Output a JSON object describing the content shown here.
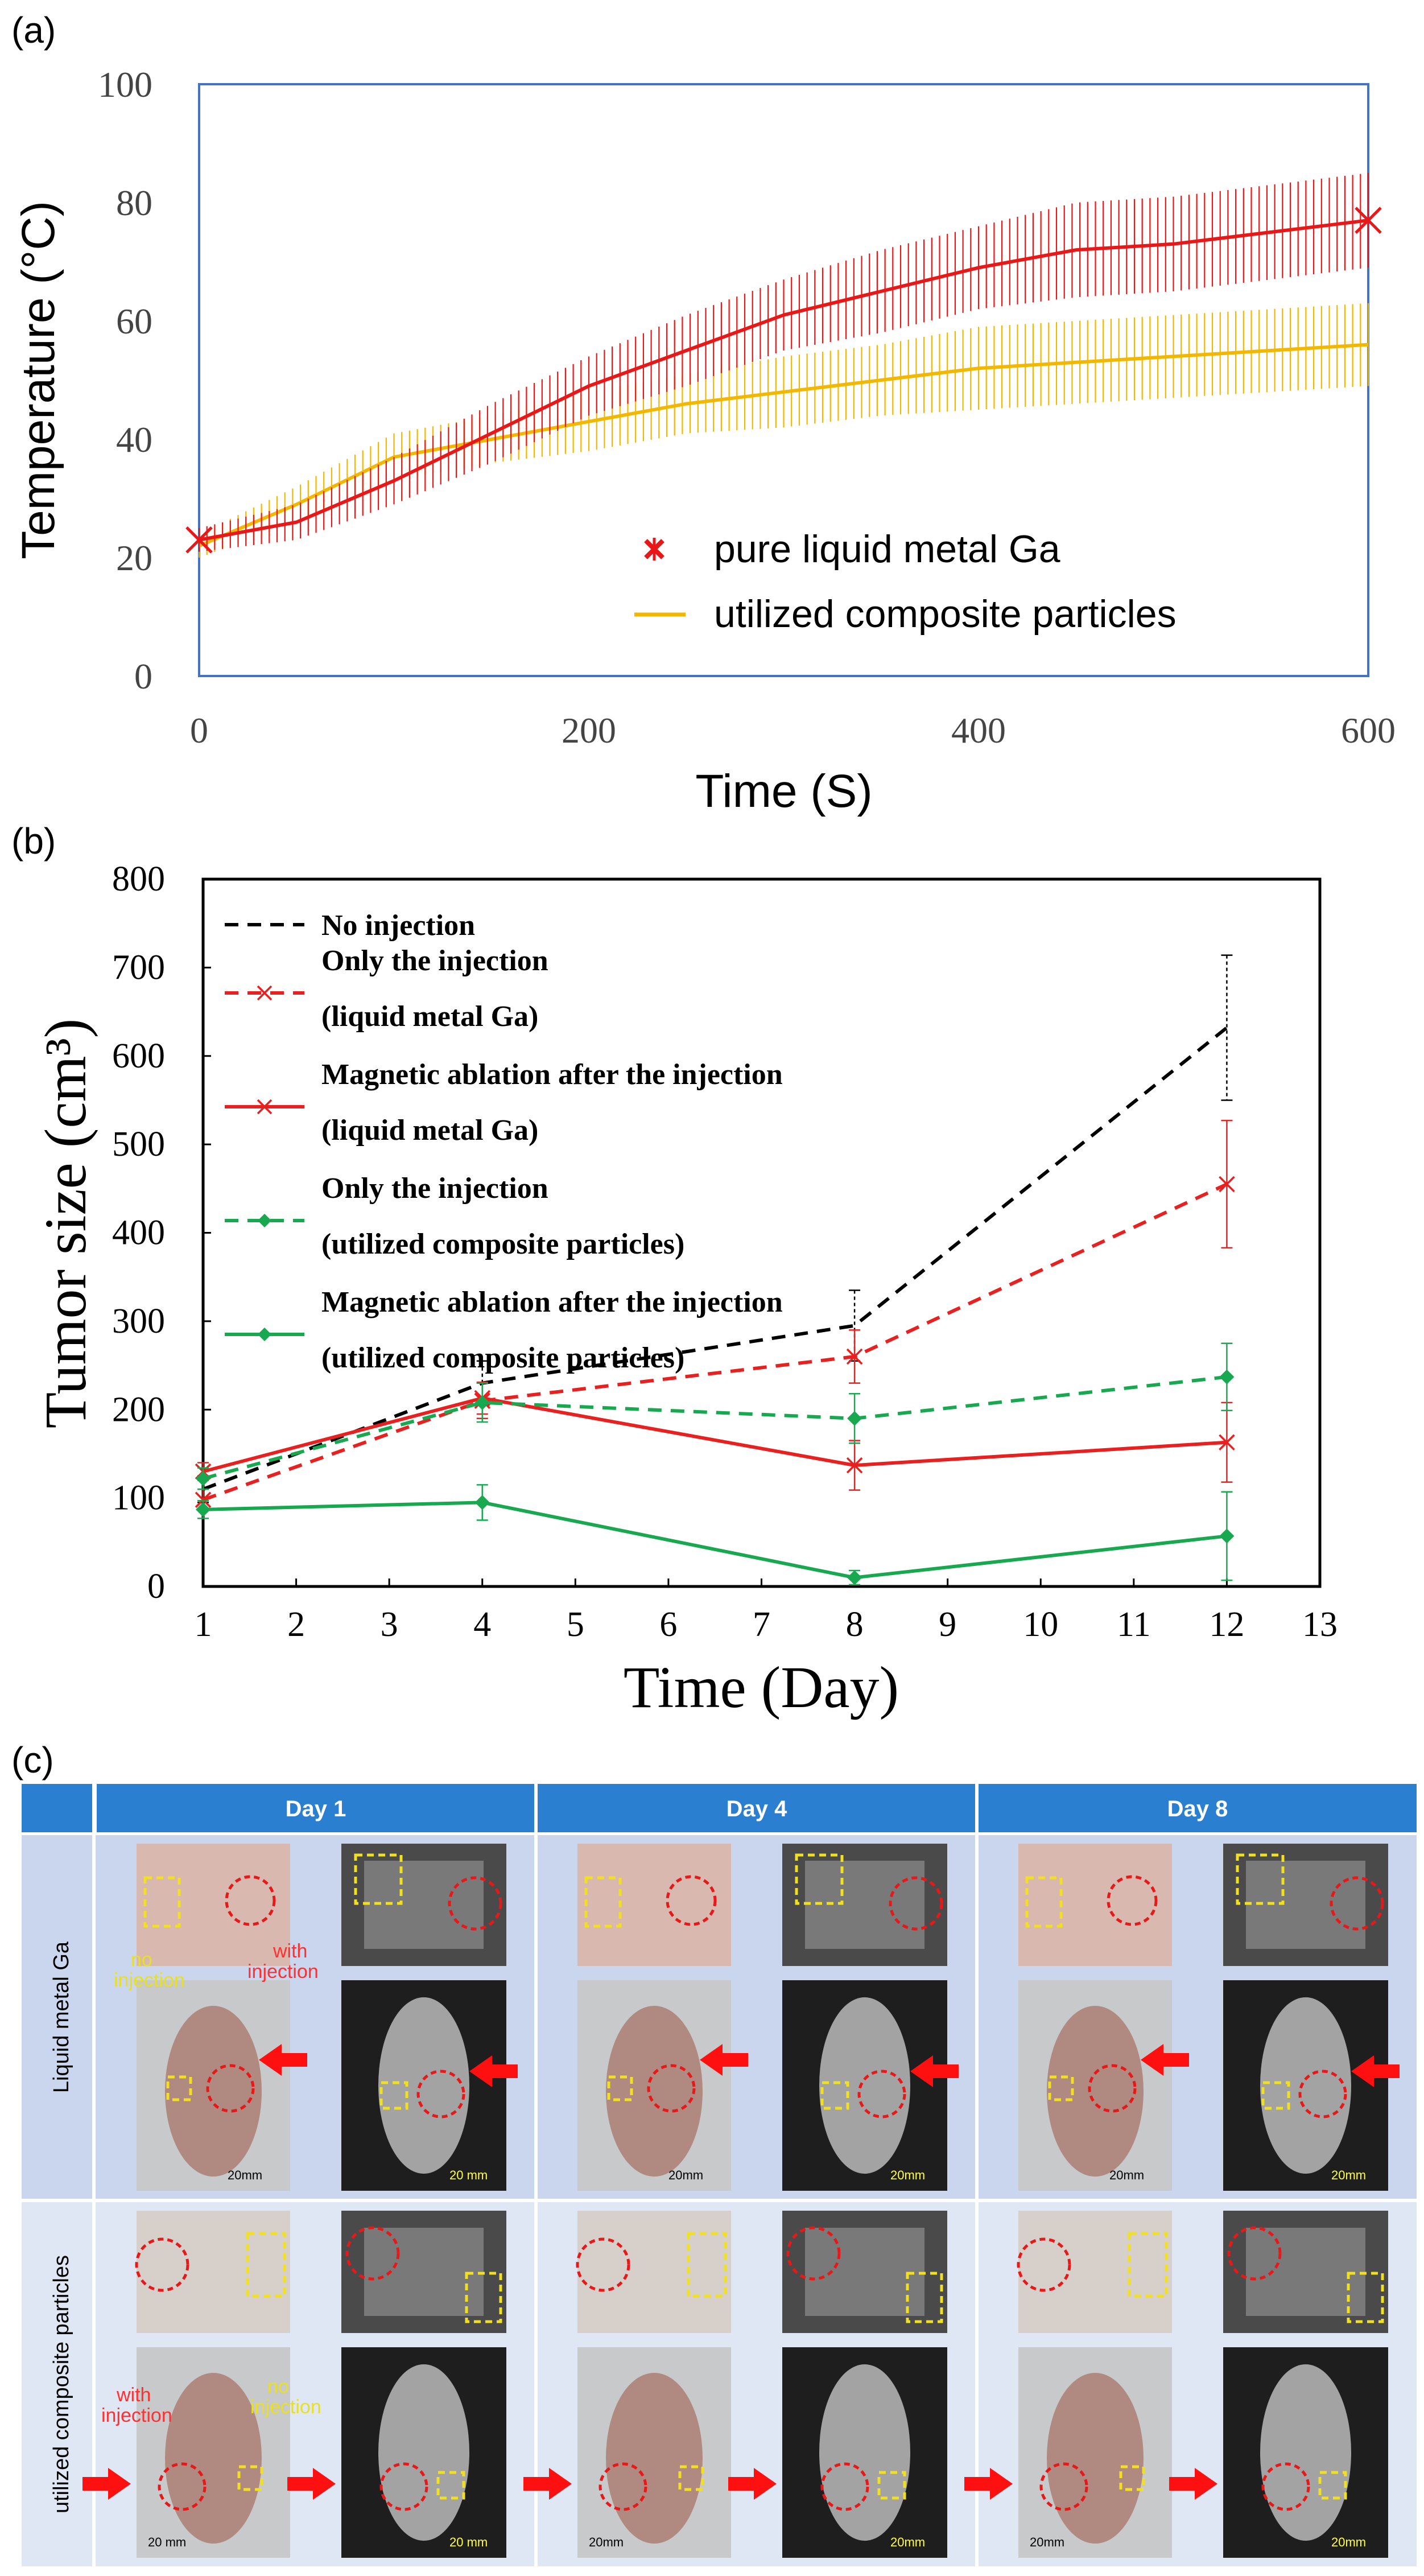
{
  "panels": {
    "a_label": "(a)",
    "b_label": "(b)",
    "c_label": "(c)"
  },
  "chart_data": [
    {
      "type": "line",
      "title": "",
      "xlabel": "Time (S)",
      "ylabel": "Temperature (°C)",
      "xlim": [
        0,
        600
      ],
      "ylim": [
        0,
        100
      ],
      "xticks": [
        0,
        200,
        400,
        600
      ],
      "yticks": [
        0,
        20,
        40,
        60,
        80,
        100
      ],
      "legend_position": "bottom-right",
      "series": [
        {
          "name": "pure liquid metal Ga",
          "color": "#e81818",
          "marker": "x",
          "x": [
            0,
            50,
            100,
            150,
            200,
            250,
            300,
            350,
            400,
            450,
            500,
            550,
            600
          ],
          "y": [
            23,
            26,
            33,
            41,
            49,
            55,
            61,
            65,
            69,
            72,
            73,
            75,
            77
          ],
          "err": [
            2,
            3,
            4,
            5,
            5,
            6,
            6,
            7,
            7,
            8,
            8,
            8,
            8
          ]
        },
        {
          "name": "utilized composite particles",
          "color": "#f2b800",
          "marker": "none",
          "x": [
            0,
            50,
            100,
            150,
            200,
            250,
            300,
            350,
            400,
            450,
            500,
            550,
            600
          ],
          "y": [
            22,
            29,
            37,
            40,
            43,
            46,
            48,
            50,
            52,
            53,
            54,
            55,
            56
          ],
          "err": [
            2,
            3,
            4,
            4,
            5,
            5,
            6,
            6,
            7,
            7,
            7,
            7,
            7
          ]
        }
      ]
    },
    {
      "type": "line",
      "title": "",
      "xlabel": "Time (Day)",
      "ylabel": "Tumor size (cm³)",
      "xlim": [
        1,
        13
      ],
      "ylim": [
        0,
        800
      ],
      "xticks": [
        1,
        2,
        3,
        4,
        5,
        6,
        7,
        8,
        9,
        10,
        11,
        12,
        13
      ],
      "yticks": [
        0,
        100,
        200,
        300,
        400,
        500,
        600,
        700,
        800
      ],
      "legend_position": "top-left",
      "series": [
        {
          "name": "No injection",
          "name_line2": "",
          "color": "#000000",
          "dash": true,
          "marker": "none",
          "x": [
            1,
            4,
            8,
            12
          ],
          "y": [
            110,
            230,
            295,
            632
          ],
          "err": [
            15,
            25,
            40,
            82
          ]
        },
        {
          "name": "Only the injection",
          "name_line2": "(liquid metal Ga)",
          "color": "#e82020",
          "dash": true,
          "marker": "x",
          "x": [
            1,
            4,
            8,
            12
          ],
          "y": [
            98,
            210,
            260,
            455
          ],
          "err": [
            12,
            20,
            30,
            72
          ]
        },
        {
          "name": "Magnetic ablation after the injection",
          "name_line2": "(liquid metal Ga)",
          "color": "#e82020",
          "dash": false,
          "marker": "x",
          "x": [
            1,
            4,
            8,
            12
          ],
          "y": [
            130,
            213,
            137,
            163
          ],
          "err": [
            10,
            18,
            28,
            45
          ]
        },
        {
          "name": "Only the injection",
          "name_line2": "(utilized composite particles)",
          "color": "#18a850",
          "dash": true,
          "marker": "diamond",
          "x": [
            1,
            4,
            8,
            12
          ],
          "y": [
            122,
            208,
            190,
            237
          ],
          "err": [
            12,
            22,
            28,
            38
          ]
        },
        {
          "name": "Magnetic ablation after the injection",
          "name_line2": "(utilized composite particles)",
          "color": "#18a850",
          "dash": false,
          "marker": "diamond",
          "x": [
            1,
            4,
            8,
            12
          ],
          "y": [
            87,
            95,
            10,
            57
          ],
          "err": [
            10,
            20,
            8,
            50
          ]
        }
      ]
    }
  ],
  "grid": {
    "columns": [
      "Day 1",
      "Day 4",
      "Day 8"
    ],
    "rows": [
      "Liquid metal Ga",
      "utilized composite particles"
    ],
    "annotations": {
      "no_injection": "no\ninjection",
      "with_injection": "with\ninjection",
      "scale_20mm": "20mm",
      "scale_20_mm": "20 mm"
    },
    "colors": {
      "header_bg": "#2a7fd0",
      "row_bg": "#ccd8ee",
      "red_circle": "#e81818",
      "yellow_box": "#f0e020"
    }
  }
}
